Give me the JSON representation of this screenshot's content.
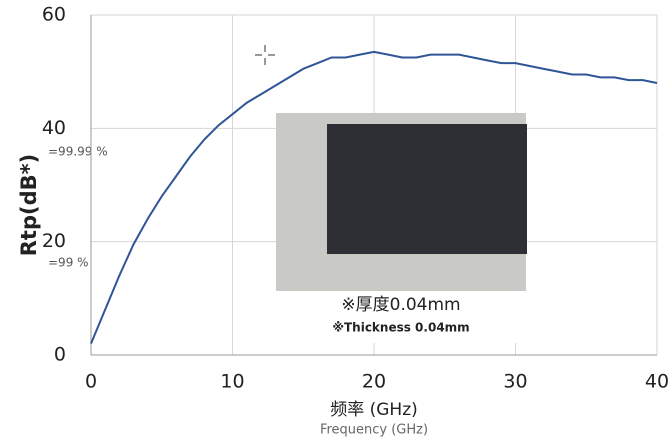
{
  "chart_data": {
    "type": "line",
    "y_label": "Rtp(dB*)",
    "x_label": "频率 (GHz)",
    "x_label_en": "Frequency (GHz)",
    "annotations": [
      "=99.99 %",
      "=99 %"
    ],
    "inset_labels": [
      "※厚度0.04mm",
      "※Thickness 0.04mm"
    ],
    "x": [
      0,
      1,
      2,
      3,
      4,
      5,
      6,
      7,
      8,
      9,
      10,
      11,
      12,
      13,
      14,
      15,
      16,
      17,
      18,
      19,
      20,
      21,
      22,
      23,
      24,
      25,
      26,
      27,
      28,
      29,
      30,
      31,
      32,
      33,
      34,
      35,
      36,
      37,
      38,
      39,
      40
    ],
    "series": [
      {
        "color": "#2f5597",
        "values": [
          2,
          8,
          14,
          19.5,
          24,
          28,
          31.5,
          35,
          38,
          40.5,
          42.5,
          44.5,
          46,
          47.5,
          49,
          50.5,
          51.5,
          52.5,
          52.5,
          53,
          53.5,
          53,
          52.5,
          52.5,
          53,
          53,
          53,
          52.5,
          52,
          51.5,
          51.5,
          51,
          50.5,
          50,
          49.5,
          49.5,
          49,
          49,
          48.5,
          48.5,
          48
        ]
      }
    ],
    "xlim": [
      0,
      40
    ],
    "xticks": [
      0,
      10,
      20,
      30,
      40
    ],
    "ylim": [
      0,
      60
    ],
    "yticks": [
      0,
      20,
      40,
      60
    ],
    "grid": true
  }
}
